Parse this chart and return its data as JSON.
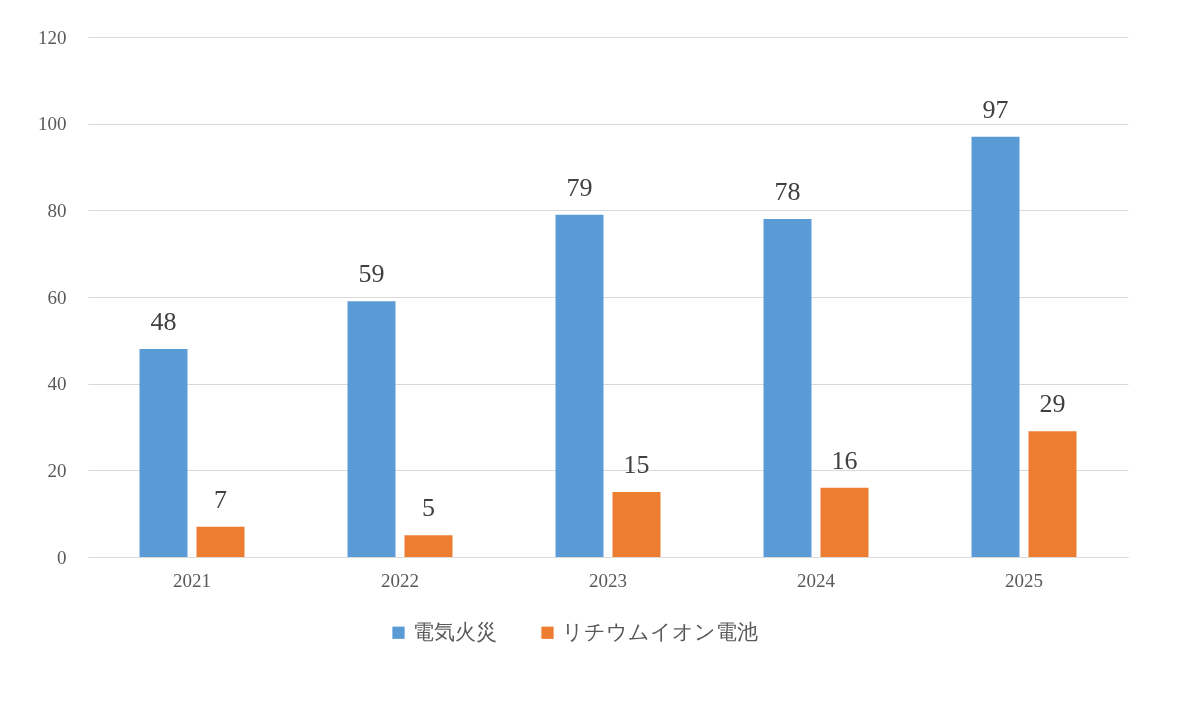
{
  "chart_data": {
    "type": "bar",
    "categories": [
      "2021",
      "2022",
      "2023",
      "2024",
      "2025"
    ],
    "series": [
      {
        "name": "電気火災",
        "color": "#5b9bd5",
        "values": [
          48,
          59,
          79,
          78,
          97
        ]
      },
      {
        "name": "リチウムイオン電池",
        "color": "#ed7d31",
        "values": [
          7,
          5,
          15,
          16,
          29
        ]
      }
    ],
    "ylim": [
      0,
      120
    ],
    "yticks": [
      0,
      20,
      40,
      60,
      80,
      100,
      120
    ],
    "grid": "y",
    "legend": "bottom",
    "data_labels": true
  }
}
